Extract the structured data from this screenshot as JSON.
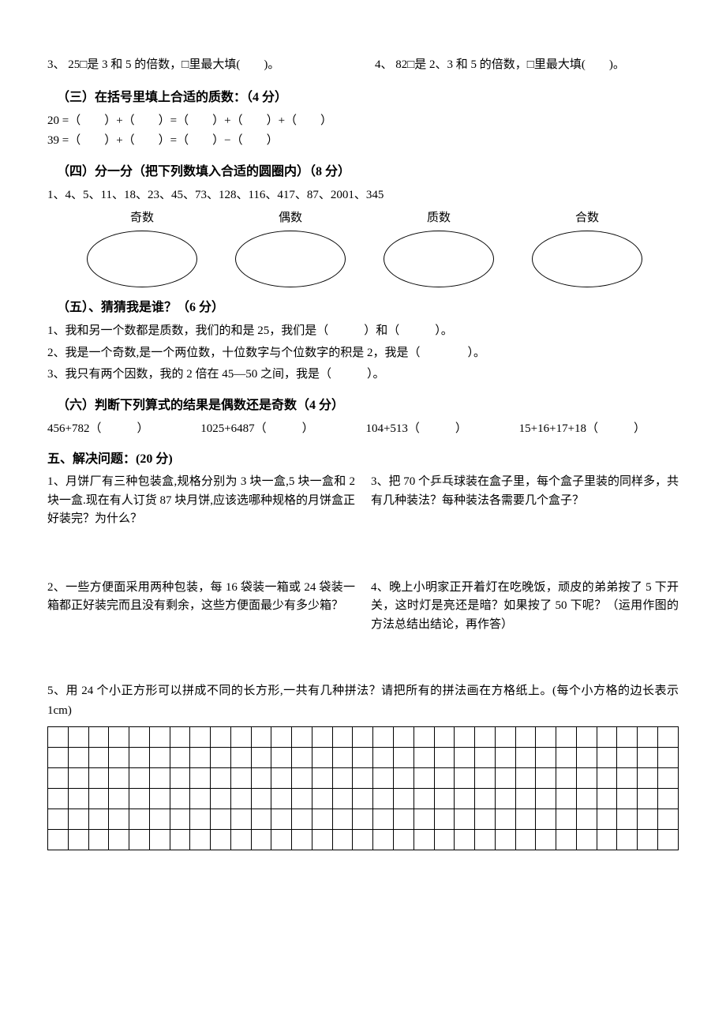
{
  "intro": {
    "q3": "3、 25□是 3 和 5 的倍数，□里最大填(　　)。",
    "q4": "4、 82□是 2、3 和 5 的倍数，□里最大填(　　)。"
  },
  "sec3": {
    "title": "（三）在括号里填上合适的质数：（4 分）",
    "line1": "20 =（　　）+（　　）=（　　）+（　　）+（　　）",
    "line2": "39 =（　　）+（　　）=（　　）−（　　）"
  },
  "sec4": {
    "title": "（四）分一分（把下列数填入合适的圆圈内）（8 分）",
    "numbers": "1、4、5、11、18、23、45、73、128、116、417、87、2001、345",
    "labels": {
      "odd": "奇数",
      "even": "偶数",
      "prime": "质数",
      "composite": "合数"
    }
  },
  "sec5": {
    "title": "（五）、猜猜我是谁？（6 分）",
    "q1": "1、我和另一个数都是质数，我们的和是 25，我们是（　　　）和（　　　）。",
    "q2": "2、我是一个奇数,是一个两位数，十位数字与个位数字的积是 2，我是（　　　　）。",
    "q3": "3、我只有两个因数，我的 2 倍在 45—50 之间，我是（　　　）。"
  },
  "sec6": {
    "title": "（六）判断下列算式的结果是偶数还是奇数（4 分）",
    "e1": "456+782（　　　）",
    "e2": "1025+6487（　　　）",
    "e3": "104+513（　　　）",
    "e4": "15+16+17+18（　　　）"
  },
  "sec_solve": {
    "title": "五、解决问题：(20 分)",
    "p1": "1、月饼厂有三种包装盒,规格分别为 3 块一盒,5 块一盒和 2 块一盒.现在有人订货 87 块月饼,应该选哪种规格的月饼盒正好装完？为什么？",
    "p2": "2、一些方便面采用两种包装，每 16 袋装一箱或 24 袋装一箱都正好装完而且没有剩余，这些方便面最少有多少箱？",
    "p3": "3、把 70 个乒乓球装在盒子里，每个盒子里装的同样多，共有几种装法？每种装法各需要几个盒子？",
    "p4": "4、晚上小明家正开着灯在吃晚饭，顽皮的弟弟按了 5 下开关，这时灯是亮还是暗？如果按了 50 下呢？（运用作图的方法总结出结论，再作答）",
    "p5": "5、用 24 个小正方形可以拼成不同的长方形,一共有几种拼法？请把所有的拼法画在方格纸上。(每个小方格的边长表示 1cm)"
  },
  "grid": {
    "rows": 6,
    "cols": 31
  },
  "colors": {
    "text": "#000000",
    "bg": "#ffffff",
    "border": "#000000"
  }
}
